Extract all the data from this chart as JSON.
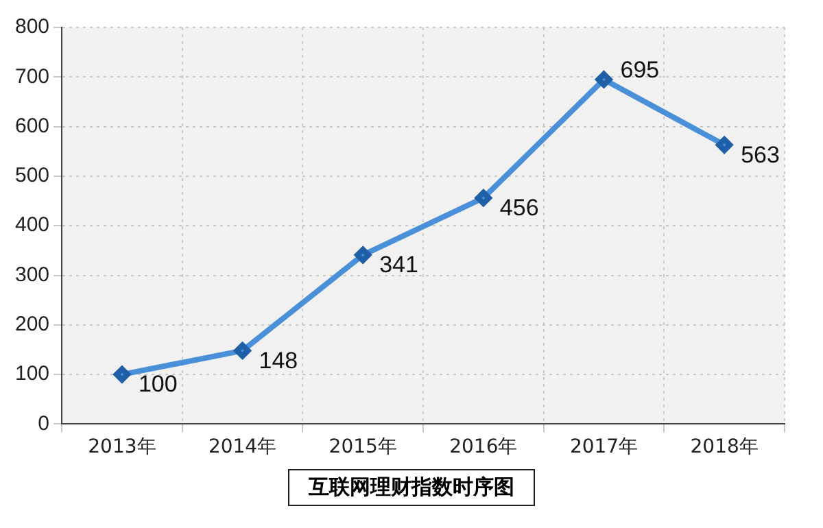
{
  "chart_data": {
    "type": "line",
    "title": "互联网理财指数时序图",
    "categories": [
      "2013年",
      "2014年",
      "2015年",
      "2016年",
      "2017年",
      "2018年"
    ],
    "series": [
      {
        "color": "#4a90d9",
        "values": [
          100,
          148,
          341,
          456,
          695,
          563
        ]
      }
    ],
    "ylim": [
      0,
      800
    ],
    "yticks": [
      0,
      100,
      200,
      300,
      400,
      500,
      600,
      700,
      800
    ],
    "grid": true,
    "legend": false,
    "marker": "diamond",
    "line_style": "solid",
    "data_labels": true
  }
}
